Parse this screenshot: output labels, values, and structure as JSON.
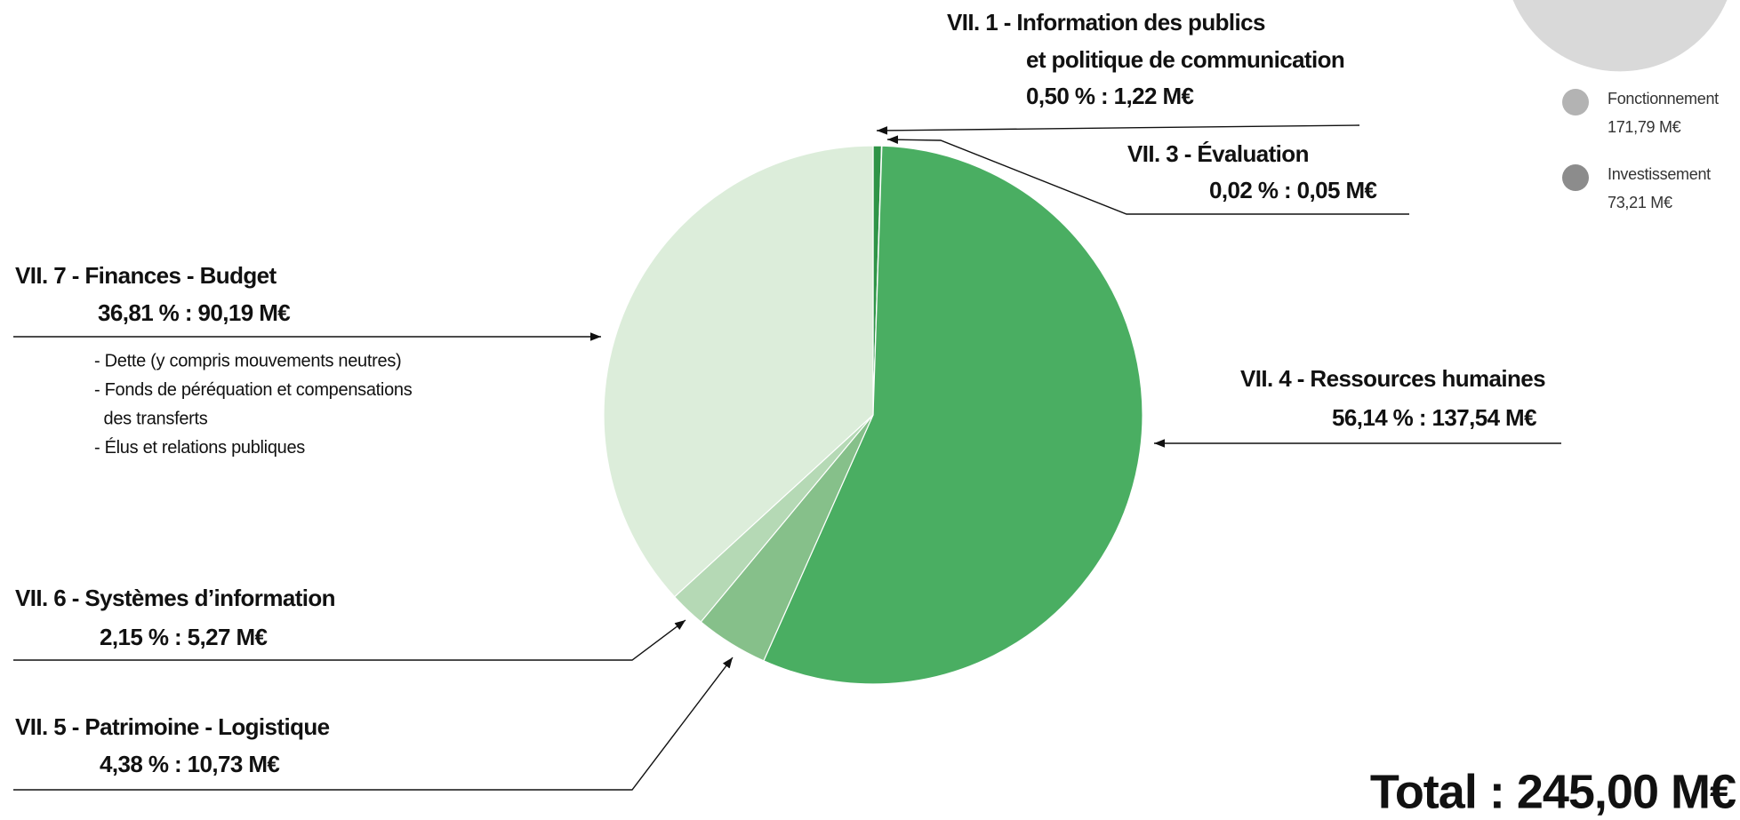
{
  "chart_data": [
    {
      "type": "pie",
      "categories": [
        [
          "VII. 1 - Information des publics",
          "et politique de communication"
        ],
        [
          "VII. 3 - Évaluation"
        ],
        [
          "VII.  4 - Ressources humaines"
        ],
        [
          "VII. 5 - Patrimoine - Logistique"
        ],
        [
          "VII. 6 - Systèmes d’information"
        ],
        [
          "VII. 7 - Finances - Budget"
        ]
      ],
      "values": [
        0.5,
        0.02,
        56.14,
        4.38,
        2.15,
        36.81
      ],
      "value_labels": [
        "0,50 % : 1,22 M€",
        "0,02 % : 0,05 M€",
        "56,14 % : 137,54 M€",
        "4,38 % : 10,73 M€",
        "2,15 % : 5,27 M€",
        "36,81 % : 90,19 M€"
      ],
      "colors": [
        "#2f9447",
        "#2f9447",
        "#4aae62",
        "#86c08a",
        "#b5d9b5",
        "#dcedda"
      ],
      "notes": [
        "- Dette (y compris mouvements neutres)",
        "- Fonds de péréquation et compensations",
        "  des transferts",
        "- Élus et relations publiques"
      ],
      "total_label": "Total : 245,00 M€"
    },
    {
      "type": "pie",
      "categories": [
        "Fonctionnement",
        "Investissement"
      ],
      "values": [
        171.79,
        73.21
      ],
      "value_labels": [
        "171,79 M€",
        "73,21 M€"
      ],
      "colors": [
        "#d9d9d9",
        "#8c8c8c"
      ],
      "legend_colors": [
        "#b3b3b3",
        "#8c8c8c"
      ]
    }
  ]
}
